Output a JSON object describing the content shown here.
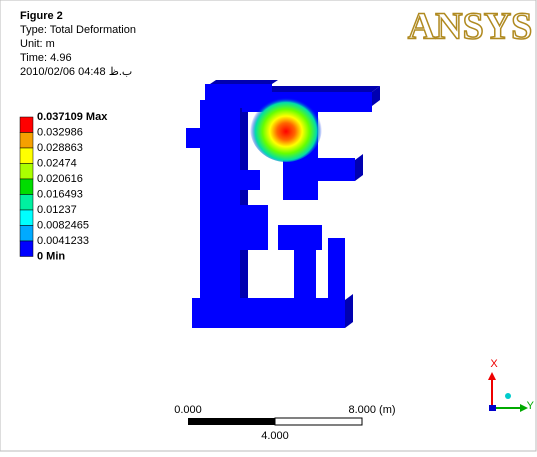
{
  "header": {
    "figure": "Figure 2",
    "type": "Type: Total Deformation",
    "unit": "Unit: m",
    "time": "Time: 4.96",
    "date": "2010/02/06 04:48 ب.ظ"
  },
  "logo": "ANSYS",
  "legend": [
    {
      "label": "0.037109 Max",
      "color": "#ff0000"
    },
    {
      "label": "0.032986",
      "color": "#f5a000"
    },
    {
      "label": "0.028863",
      "color": "#ffff00"
    },
    {
      "label": "0.02474",
      "color": "#aaff00"
    },
    {
      "label": "0.020616",
      "color": "#00dd00"
    },
    {
      "label": "0.016493",
      "color": "#00f0a0"
    },
    {
      "label": "0.01237",
      "color": "#00ffff"
    },
    {
      "label": "0.0082465",
      "color": "#00aaff"
    },
    {
      "label": "0.0041233",
      "color": "#0000ff"
    },
    {
      "label": "0 Min"
    }
  ],
  "scale_bar": {
    "start": "0.000",
    "end": "8.000 (m)",
    "middle": "4.000"
  },
  "triad": {
    "x": "X",
    "y": "Y"
  }
}
